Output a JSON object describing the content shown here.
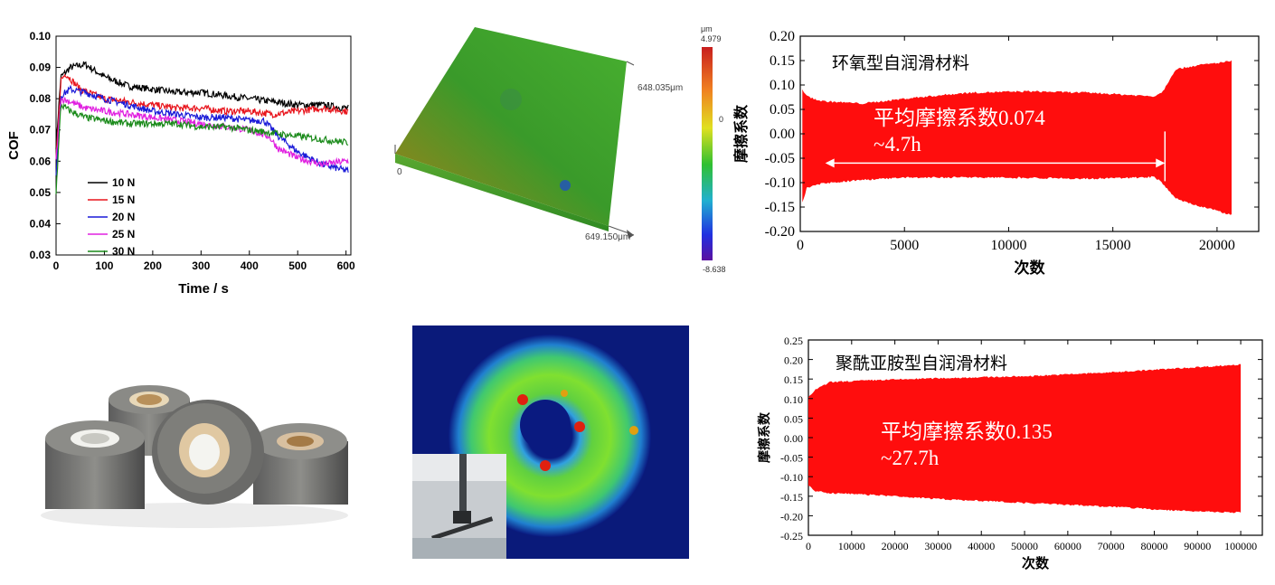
{
  "chart_data": [
    {
      "type": "line",
      "xlabel": "Time / s",
      "ylabel": "COF",
      "xlim": [
        0,
        610
      ],
      "ylim": [
        0.03,
        0.1
      ],
      "xticks": [
        "0",
        "100",
        "200",
        "300",
        "400",
        "500",
        "600"
      ],
      "yticks": [
        "0.03",
        "0.04",
        "0.05",
        "0.06",
        "0.07",
        "0.08",
        "0.09",
        "0.10"
      ],
      "legend_position": "bottom-left",
      "series": [
        {
          "name": "10 N",
          "color": "#000000",
          "x": [
            0,
            10,
            30,
            60,
            100,
            150,
            200,
            250,
            300,
            350,
            400,
            450,
            500,
            550,
            600
          ],
          "y": [
            0.065,
            0.087,
            0.09,
            0.091,
            0.087,
            0.084,
            0.083,
            0.082,
            0.082,
            0.081,
            0.08,
            0.079,
            0.078,
            0.078,
            0.077
          ]
        },
        {
          "name": "15 N",
          "color": "#e8141c",
          "x": [
            0,
            10,
            20,
            50,
            100,
            150,
            200,
            250,
            300,
            350,
            400,
            450,
            500,
            550,
            600
          ],
          "y": [
            0.06,
            0.086,
            0.088,
            0.083,
            0.08,
            0.079,
            0.078,
            0.077,
            0.077,
            0.076,
            0.076,
            0.075,
            0.076,
            0.077,
            0.076
          ]
        },
        {
          "name": "20 N",
          "color": "#1a1ad8",
          "x": [
            0,
            10,
            30,
            60,
            100,
            150,
            200,
            250,
            300,
            350,
            400,
            430,
            460,
            500,
            550,
            600
          ],
          "y": [
            0.055,
            0.081,
            0.083,
            0.082,
            0.08,
            0.078,
            0.076,
            0.075,
            0.074,
            0.074,
            0.073,
            0.073,
            0.068,
            0.063,
            0.059,
            0.057
          ]
        },
        {
          "name": "25 N",
          "color": "#e020e0",
          "x": [
            0,
            10,
            30,
            60,
            100,
            150,
            200,
            250,
            300,
            350,
            400,
            440,
            460,
            500,
            550,
            600
          ],
          "y": [
            0.06,
            0.08,
            0.079,
            0.077,
            0.076,
            0.075,
            0.074,
            0.073,
            0.072,
            0.071,
            0.07,
            0.068,
            0.064,
            0.061,
            0.059,
            0.06
          ]
        },
        {
          "name": "30 N",
          "color": "#1a8a1a",
          "x": [
            0,
            10,
            30,
            60,
            100,
            150,
            200,
            250,
            300,
            350,
            400,
            450,
            500,
            550,
            600
          ],
          "y": [
            0.05,
            0.078,
            0.076,
            0.074,
            0.073,
            0.072,
            0.072,
            0.072,
            0.071,
            0.071,
            0.07,
            0.069,
            0.068,
            0.067,
            0.066
          ]
        }
      ]
    },
    {
      "type": "area",
      "title": "环氧型自润滑材料",
      "xlabel": "次数",
      "ylabel": "摩擦系数",
      "xlim": [
        0,
        22000
      ],
      "ylim": [
        -0.2,
        0.2
      ],
      "xticks": [
        "0",
        "5000",
        "10000",
        "15000",
        "20000"
      ],
      "yticks": [
        "0.20",
        "0.15",
        "0.10",
        "0.05",
        "0.00",
        "-0.05",
        "-0.10",
        "-0.15",
        "-0.20"
      ],
      "annotation_text": "平均摩擦系数0.074",
      "annotation_sub": "~4.7h",
      "arrow_from": 1200,
      "arrow_to": 17500,
      "arrow_y": -0.06,
      "color": "#ff0d0d",
      "envelope": {
        "x": [
          100,
          300,
          1000,
          3000,
          5000,
          8000,
          11000,
          14000,
          16000,
          17000,
          17400,
          18000,
          19000,
          20000,
          20700
        ],
        "upper": [
          0.09,
          0.075,
          0.065,
          0.06,
          0.07,
          0.082,
          0.085,
          0.082,
          0.077,
          0.075,
          0.085,
          0.13,
          0.138,
          0.143,
          0.147
        ],
        "lower": [
          -0.14,
          -0.11,
          -0.1,
          -0.092,
          -0.088,
          -0.087,
          -0.088,
          -0.09,
          -0.088,
          -0.086,
          -0.1,
          -0.13,
          -0.145,
          -0.155,
          -0.165
        ]
      }
    },
    {
      "type": "area",
      "title": "聚酰亚胺型自润滑材料",
      "xlabel": "次数",
      "ylabel": "摩擦系数",
      "xlim": [
        0,
        105000
      ],
      "ylim": [
        -0.25,
        0.25
      ],
      "xticks": [
        "0",
        "10000",
        "20000",
        "30000",
        "40000",
        "50000",
        "60000",
        "70000",
        "80000",
        "90000",
        "100000"
      ],
      "yticks": [
        "0.25",
        "0.20",
        "0.15",
        "0.10",
        "0.05",
        "0.00",
        "-0.05",
        "-0.10",
        "-0.15",
        "-0.20",
        "-0.25"
      ],
      "annotation_text": "平均摩擦系数0.135",
      "annotation_sub": "~27.7h",
      "color": "#ff0d0d",
      "envelope": {
        "x": [
          0,
          1500,
          5000,
          15000,
          30000,
          50000,
          70000,
          85000,
          100000
        ],
        "upper": [
          0.1,
          0.12,
          0.14,
          0.145,
          0.15,
          0.155,
          0.165,
          0.175,
          0.185
        ],
        "lower": [
          -0.12,
          -0.135,
          -0.14,
          -0.145,
          -0.155,
          -0.165,
          -0.175,
          -0.185,
          -0.19
        ]
      }
    }
  ],
  "surface3d": {
    "width_label": "649.150μm",
    "depth_label": "648.035μm",
    "origin_label": "0",
    "colorbar_unit": "μm",
    "colorbar_max": "4.979",
    "colorbar_zero": "0",
    "colorbar_min": "-8.638"
  }
}
